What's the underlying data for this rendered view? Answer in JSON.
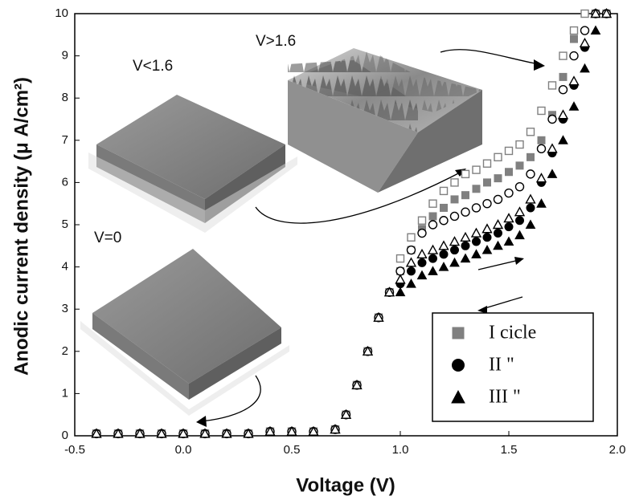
{
  "chart_data": {
    "type": "scatter",
    "x_label": "Voltage (V)",
    "y_label": "Anodic current density (μ A/cm²)",
    "xlim": [
      -0.5,
      2.0
    ],
    "ylim": [
      0,
      10
    ],
    "xticks": [
      -0.5,
      {
        "value": 0,
        "label": "0.0"
      },
      0.5,
      {
        "value": 1,
        "label": "1.0"
      },
      1.5,
      {
        "value": 2,
        "label": "2.0"
      }
    ],
    "yticks": [
      0,
      1,
      2,
      3,
      4,
      5,
      6,
      7,
      8,
      9,
      10
    ],
    "annotations": [
      "V<1.6",
      "V>1.6",
      "V=0"
    ],
    "x": [
      -0.4,
      -0.3,
      -0.2,
      -0.1,
      0,
      0.1,
      0.2,
      0.3,
      0.4,
      0.5,
      0.6,
      0.7,
      0.75,
      0.8,
      0.85,
      0.9,
      0.95,
      1.0,
      1.05,
      1.1,
      1.15,
      1.2,
      1.25,
      1.3,
      1.35,
      1.4,
      1.45,
      1.5,
      1.55,
      1.6,
      1.65,
      1.7,
      1.75,
      1.8,
      1.85,
      1.9,
      1.95
    ],
    "series": [
      {
        "name": "I  cicle",
        "color": "#808080",
        "marker": "square",
        "open": false,
        "values": [
          0.05,
          0.05,
          0.05,
          0.05,
          0.05,
          0.05,
          0.05,
          0.05,
          0.1,
          0.1,
          0.1,
          0.15,
          0.5,
          1.2,
          2.0,
          2.8,
          3.4,
          3.9,
          4.4,
          4.9,
          5.2,
          5.4,
          5.6,
          5.7,
          5.85,
          6.0,
          6.1,
          6.25,
          6.4,
          6.6,
          7.0,
          7.6,
          8.5,
          9.4,
          10,
          10,
          10
        ]
      },
      {
        "name": "II  \"",
        "color": "#000000",
        "marker": "circle",
        "open": false,
        "values": [
          0.05,
          0.05,
          0.05,
          0.05,
          0.05,
          0.05,
          0.05,
          0.05,
          0.1,
          0.1,
          0.1,
          0.15,
          0.5,
          1.2,
          2.0,
          2.8,
          3.4,
          3.6,
          3.9,
          4.1,
          4.2,
          4.3,
          4.4,
          4.5,
          4.6,
          4.7,
          4.8,
          4.95,
          5.1,
          5.4,
          6.0,
          6.7,
          7.5,
          8.3,
          9.2,
          10,
          10
        ]
      },
      {
        "name": "III  \"",
        "color": "#000000",
        "marker": "triangle",
        "open": false,
        "values": [
          0.05,
          0.05,
          0.05,
          0.05,
          0.05,
          0.05,
          0.05,
          0.05,
          0.1,
          0.1,
          0.1,
          0.15,
          0.5,
          1.2,
          2.0,
          2.8,
          3.4,
          3.4,
          3.6,
          3.8,
          3.9,
          4.0,
          4.1,
          4.2,
          4.3,
          4.4,
          4.5,
          4.6,
          4.75,
          5.0,
          5.5,
          6.2,
          7.0,
          7.8,
          8.7,
          9.6,
          10
        ]
      },
      {
        "color": "#808080",
        "marker": "square",
        "open": true,
        "values": [
          0.05,
          0.05,
          0.05,
          0.05,
          0.05,
          0.05,
          0.05,
          0.05,
          0.1,
          0.1,
          0.1,
          0.15,
          0.5,
          1.2,
          2.0,
          2.8,
          3.4,
          4.2,
          4.7,
          5.1,
          5.5,
          5.8,
          6.0,
          6.2,
          6.3,
          6.45,
          6.6,
          6.75,
          6.9,
          7.2,
          7.7,
          8.3,
          9.0,
          9.6,
          10,
          10,
          10
        ]
      },
      {
        "color": "#000000",
        "marker": "circle",
        "open": true,
        "values": [
          0.05,
          0.05,
          0.05,
          0.05,
          0.05,
          0.05,
          0.05,
          0.05,
          0.1,
          0.1,
          0.1,
          0.15,
          0.5,
          1.2,
          2.0,
          2.8,
          3.4,
          3.9,
          4.4,
          4.8,
          5.0,
          5.1,
          5.2,
          5.3,
          5.4,
          5.5,
          5.6,
          5.75,
          5.9,
          6.2,
          6.8,
          7.5,
          8.2,
          9.0,
          9.6,
          10,
          10
        ]
      },
      {
        "color": "#000000",
        "marker": "triangle",
        "open": true,
        "values": [
          0.05,
          0.05,
          0.05,
          0.05,
          0.05,
          0.05,
          0.05,
          0.05,
          0.1,
          0.1,
          0.1,
          0.15,
          0.5,
          1.2,
          2.0,
          2.8,
          3.4,
          3.7,
          4.1,
          4.3,
          4.4,
          4.5,
          4.6,
          4.7,
          4.8,
          4.9,
          5.0,
          5.15,
          5.3,
          5.6,
          6.1,
          6.8,
          7.6,
          8.4,
          9.3,
          10,
          10
        ]
      }
    ]
  }
}
